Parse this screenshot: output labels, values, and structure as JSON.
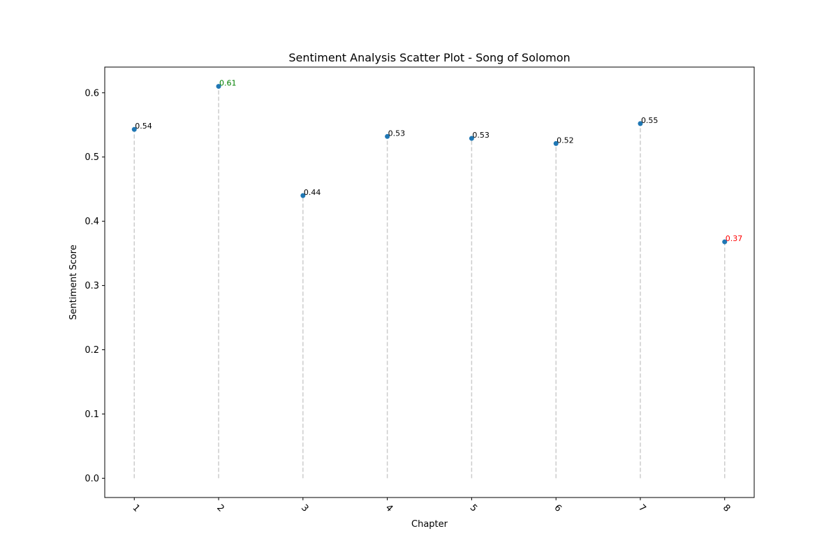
{
  "chart_data": {
    "type": "scatter",
    "title": "Sentiment Analysis Scatter Plot - Song of Solomon",
    "xlabel": "Chapter",
    "ylabel": "Sentiment Score",
    "x": [
      1,
      2,
      3,
      4,
      5,
      6,
      7,
      8
    ],
    "x_tick_labels": [
      "1",
      "2",
      "3",
      "4",
      "5",
      "6",
      "7",
      "8"
    ],
    "y": [
      0.543,
      0.61,
      0.44,
      0.532,
      0.529,
      0.521,
      0.552,
      0.368
    ],
    "data_labels": [
      "0.54",
      "0.61",
      "0.44",
      "0.53",
      "0.53",
      "0.52",
      "0.55",
      "0.37"
    ],
    "label_colors": [
      "#000000",
      "#008000",
      "#000000",
      "#000000",
      "#000000",
      "#000000",
      "#000000",
      "#ff0000"
    ],
    "xlim": [
      0.65,
      8.35
    ],
    "ylim": [
      -0.03,
      0.64
    ],
    "y_ticks": [
      0.0,
      0.1,
      0.2,
      0.3,
      0.4,
      0.5,
      0.6
    ],
    "y_tick_labels": [
      "0.0",
      "0.1",
      "0.2",
      "0.3",
      "0.4",
      "0.5",
      "0.6"
    ],
    "grid": false,
    "stem_lines": "dashed",
    "colors": {
      "marker": "#1f77b4",
      "stem": "#cccccc",
      "axis": "#000000"
    }
  }
}
